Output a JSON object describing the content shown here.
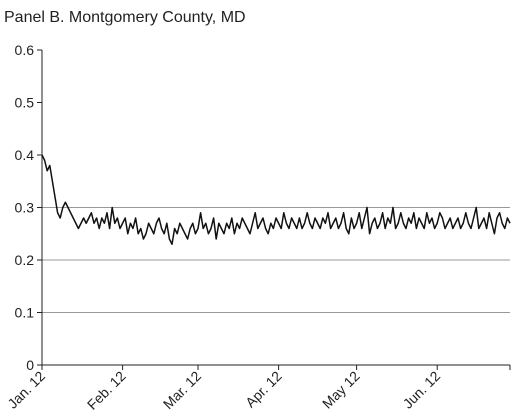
{
  "chart_data": {
    "type": "line",
    "title": "Panel B. Montgomery County, MD",
    "series": [
      {
        "color": "#111111",
        "values": [
          0.4,
          0.39,
          0.37,
          0.38,
          0.35,
          0.32,
          0.29,
          0.28,
          0.3,
          0.31,
          0.3,
          0.29,
          0.28,
          0.27,
          0.26,
          0.27,
          0.28,
          0.27,
          0.28,
          0.29,
          0.27,
          0.28,
          0.26,
          0.28,
          0.27,
          0.29,
          0.26,
          0.3,
          0.27,
          0.28,
          0.26,
          0.27,
          0.28,
          0.25,
          0.27,
          0.26,
          0.28,
          0.25,
          0.26,
          0.24,
          0.25,
          0.27,
          0.26,
          0.25,
          0.27,
          0.28,
          0.26,
          0.25,
          0.27,
          0.24,
          0.23,
          0.26,
          0.25,
          0.27,
          0.26,
          0.25,
          0.24,
          0.26,
          0.27,
          0.25,
          0.26,
          0.29,
          0.26,
          0.27,
          0.25,
          0.26,
          0.28,
          0.24,
          0.27,
          0.26,
          0.25,
          0.27,
          0.26,
          0.28,
          0.25,
          0.27,
          0.26,
          0.28,
          0.27,
          0.26,
          0.25,
          0.27,
          0.29,
          0.26,
          0.27,
          0.28,
          0.26,
          0.25,
          0.27,
          0.26,
          0.28,
          0.27,
          0.26,
          0.29,
          0.27,
          0.26,
          0.28,
          0.27,
          0.26,
          0.28,
          0.26,
          0.27,
          0.29,
          0.27,
          0.26,
          0.28,
          0.27,
          0.26,
          0.28,
          0.27,
          0.29,
          0.26,
          0.27,
          0.28,
          0.26,
          0.27,
          0.29,
          0.26,
          0.25,
          0.28,
          0.26,
          0.27,
          0.29,
          0.26,
          0.28,
          0.3,
          0.25,
          0.27,
          0.28,
          0.26,
          0.27,
          0.29,
          0.26,
          0.28,
          0.27,
          0.3,
          0.26,
          0.27,
          0.29,
          0.27,
          0.26,
          0.28,
          0.27,
          0.29,
          0.26,
          0.28,
          0.27,
          0.26,
          0.29,
          0.27,
          0.28,
          0.26,
          0.27,
          0.29,
          0.28,
          0.26,
          0.27,
          0.28,
          0.26,
          0.27,
          0.28,
          0.26,
          0.27,
          0.29,
          0.27,
          0.26,
          0.28,
          0.3,
          0.26,
          0.27,
          0.28,
          0.26,
          0.29,
          0.27,
          0.25,
          0.28,
          0.29,
          0.27,
          0.26,
          0.28,
          0.27
        ]
      }
    ],
    "xlim": [
      0,
      180
    ],
    "xticks": [
      {
        "value": 0,
        "label": "Jan. 12"
      },
      {
        "value": 31,
        "label": "Feb. 12"
      },
      {
        "value": 60,
        "label": "Mar. 12"
      },
      {
        "value": 91,
        "label": "Apr. 12"
      },
      {
        "value": 121,
        "label": "May 12"
      },
      {
        "value": 152,
        "label": "Jun. 12"
      }
    ],
    "ylim": [
      0,
      0.6
    ],
    "yticks": [
      0,
      0.1,
      0.2,
      0.3,
      0.4,
      0.5,
      0.6
    ],
    "grid_lines": [
      0.1,
      0.2,
      0.3
    ]
  }
}
